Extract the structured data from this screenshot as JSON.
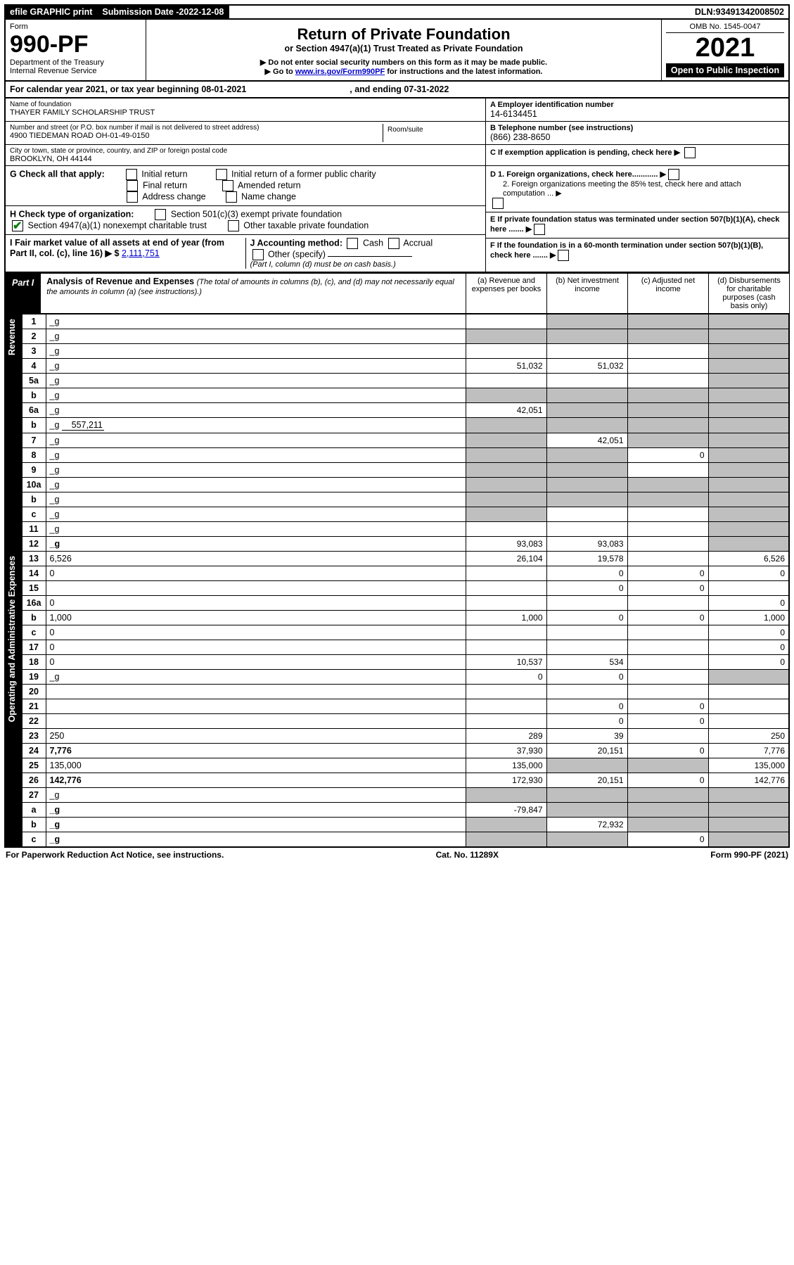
{
  "topbar": {
    "efile": "efile GRAPHIC print",
    "subdate_label": "Submission Date - ",
    "subdate": "2022-12-08",
    "dln_label": "DLN: ",
    "dln": "93491342008502"
  },
  "header": {
    "form_word": "Form",
    "form_no": "990-PF",
    "dept1": "Department of the Treasury",
    "dept2": "Internal Revenue Service",
    "title": "Return of Private Foundation",
    "subtitle": "or Section 4947(a)(1) Trust Treated as Private Foundation",
    "note1": "▶ Do not enter social security numbers on this form as it may be made public.",
    "note2_pre": "▶ Go to ",
    "note2_link": "www.irs.gov/Form990PF",
    "note2_post": " for instructions and the latest information.",
    "omb": "OMB No. 1545-0047",
    "year": "2021",
    "open": "Open to Public Inspection"
  },
  "calyear": {
    "pre": "For calendar year 2021, or tax year beginning ",
    "begin": "08-01-2021",
    "mid": " , and ending ",
    "end": "07-31-2022"
  },
  "entity": {
    "name_label": "Name of foundation",
    "name": "THAYER FAMILY SCHOLARSHIP TRUST",
    "addr_label": "Number and street (or P.O. box number if mail is not delivered to street address)",
    "addr": "4900 TIEDEMAN ROAD OH-01-49-0150",
    "room_label": "Room/suite",
    "room": "",
    "city_label": "City or town, state or province, country, and ZIP or foreign postal code",
    "city": "BROOKLYN, OH  44144",
    "ein_label": "A Employer identification number",
    "ein": "14-6134451",
    "phone_label": "B Telephone number (see instructions)",
    "phone": "(866) 238-8650",
    "c_label": "C If exemption application is pending, check here",
    "d1_label": "D 1. Foreign organizations, check here............",
    "d2_label": "2. Foreign organizations meeting the 85% test, check here and attach computation ... ▶",
    "e_label": "E  If private foundation status was terminated under section 507(b)(1)(A), check here .......",
    "f_label": "F  If the foundation is in a 60-month termination under section 507(b)(1)(B), check here .......",
    "g_label": "G Check all that apply:",
    "g_opts": [
      "Initial return",
      "Initial return of a former public charity",
      "Final return",
      "Amended return",
      "Address change",
      "Name change"
    ],
    "h_label": "H Check type of organization:",
    "h_opt1": "Section 501(c)(3) exempt private foundation",
    "h_opt2": "Section 4947(a)(1) nonexempt charitable trust",
    "h_opt3": "Other taxable private foundation",
    "i_label": "I Fair market value of all assets at end of year (from Part II, col. (c), line 16) ▶ $",
    "i_val": "2,111,751",
    "j_label": "J Accounting method:",
    "j_cash": "Cash",
    "j_accrual": "Accrual",
    "j_other": "Other (specify)",
    "j_note": "(Part I, column (d) must be on cash basis.)"
  },
  "part1": {
    "label": "Part I",
    "title": "Analysis of Revenue and Expenses",
    "title_note": " (The total of amounts in columns (b), (c), and (d) may not necessarily equal the amounts in column (a) (see instructions).)",
    "col_a": "(a) Revenue and expenses per books",
    "col_b": "(b) Net investment income",
    "col_c": "(c) Adjusted net income",
    "col_d": "(d) Disbursements for charitable purposes (cash basis only)"
  },
  "side_rev": "Revenue",
  "side_exp": "Operating and Administrative Expenses",
  "rows": {
    "r1": {
      "n": "1",
      "d": "_g",
      "a": "",
      "b": "_g",
      "c": "_g"
    },
    "r2": {
      "n": "2",
      "d": "_g",
      "a": "_g",
      "b": "_g",
      "c": "_g",
      "chk": true
    },
    "r3": {
      "n": "3",
      "d": "_g",
      "a": "",
      "b": "",
      "c": ""
    },
    "r4": {
      "n": "4",
      "d": "_g",
      "a": "51,032",
      "b": "51,032",
      "c": ""
    },
    "r5a": {
      "n": "5a",
      "d": "_g",
      "a": "",
      "b": "",
      "c": ""
    },
    "r5b": {
      "n": "b",
      "d": "_g",
      "a": "_g",
      "b": "_g",
      "c": "_g"
    },
    "r6a": {
      "n": "6a",
      "d": "_g",
      "a": "42,051",
      "b": "_g",
      "c": "_g"
    },
    "r6b": {
      "n": "b",
      "d": "_g",
      "inline": "557,211",
      "a": "_g",
      "b": "_g",
      "c": "_g"
    },
    "r7": {
      "n": "7",
      "d": "_g",
      "a": "_g",
      "b": "42,051",
      "c": "_g"
    },
    "r8": {
      "n": "8",
      "d": "_g",
      "a": "_g",
      "b": "_g",
      "c": "0"
    },
    "r9": {
      "n": "9",
      "d": "_g",
      "a": "_g",
      "b": "_g",
      "c": ""
    },
    "r10a": {
      "n": "10a",
      "d": "_g",
      "a": "_g",
      "b": "_g",
      "c": "_g"
    },
    "r10b": {
      "n": "b",
      "d": "_g",
      "a": "_g",
      "b": "_g",
      "c": "_g"
    },
    "r10c": {
      "n": "c",
      "d": "_g",
      "a": "_g",
      "b": "",
      "c": ""
    },
    "r11": {
      "n": "11",
      "d": "_g",
      "a": "",
      "b": "",
      "c": ""
    },
    "r12": {
      "n": "12",
      "d": "_g",
      "bold": true,
      "a": "93,083",
      "b": "93,083",
      "c": ""
    },
    "r13": {
      "n": "13",
      "d": "6,526",
      "a": "26,104",
      "b": "19,578",
      "c": ""
    },
    "r14": {
      "n": "14",
      "d": "0",
      "a": "",
      "b": "0",
      "c": "0"
    },
    "r15": {
      "n": "15",
      "d": "",
      "a": "",
      "b": "0",
      "c": "0"
    },
    "r16a": {
      "n": "16a",
      "d": "0",
      "a": "",
      "b": "",
      "c": ""
    },
    "r16b": {
      "n": "b",
      "d": "1,000",
      "a": "1,000",
      "b": "0",
      "c": "0"
    },
    "r16c": {
      "n": "c",
      "d": "0",
      "a": "",
      "b": "",
      "c": ""
    },
    "r17": {
      "n": "17",
      "d": "0",
      "a": "",
      "b": "",
      "c": ""
    },
    "r18": {
      "n": "18",
      "d": "0",
      "a": "10,537",
      "b": "534",
      "c": ""
    },
    "r19": {
      "n": "19",
      "d": "_g",
      "a": "0",
      "b": "0",
      "c": ""
    },
    "r20": {
      "n": "20",
      "d": "",
      "a": "",
      "b": "",
      "c": ""
    },
    "r21": {
      "n": "21",
      "d": "",
      "a": "",
      "b": "0",
      "c": "0"
    },
    "r22": {
      "n": "22",
      "d": "",
      "a": "",
      "b": "0",
      "c": "0"
    },
    "r23": {
      "n": "23",
      "d": "250",
      "a": "289",
      "b": "39",
      "c": ""
    },
    "r24": {
      "n": "24",
      "d": "7,776",
      "bold": true,
      "a": "37,930",
      "b": "20,151",
      "c": "0"
    },
    "r25": {
      "n": "25",
      "d": "135,000",
      "a": "135,000",
      "b": "_g",
      "c": "_g"
    },
    "r26": {
      "n": "26",
      "d": "142,776",
      "bold": true,
      "a": "172,930",
      "b": "20,151",
      "c": "0"
    },
    "r27": {
      "n": "27",
      "d": "_g",
      "a": "_g",
      "b": "_g",
      "c": "_g"
    },
    "r27a": {
      "n": "a",
      "d": "_g",
      "bold": true,
      "a": "-79,847",
      "b": "_g",
      "c": "_g"
    },
    "r27b": {
      "n": "b",
      "d": "_g",
      "bold": true,
      "a": "_g",
      "b": "72,932",
      "c": "_g"
    },
    "r27c": {
      "n": "c",
      "d": "_g",
      "bold": true,
      "a": "_g",
      "b": "_g",
      "c": "0"
    }
  },
  "footer": {
    "left": "For Paperwork Reduction Act Notice, see instructions.",
    "mid": "Cat. No. 11289X",
    "right": "Form 990-PF (2021)"
  },
  "colors": {
    "grey": "#bfbfbf",
    "link": "#0000cc",
    "check": "#0a7d0a"
  }
}
